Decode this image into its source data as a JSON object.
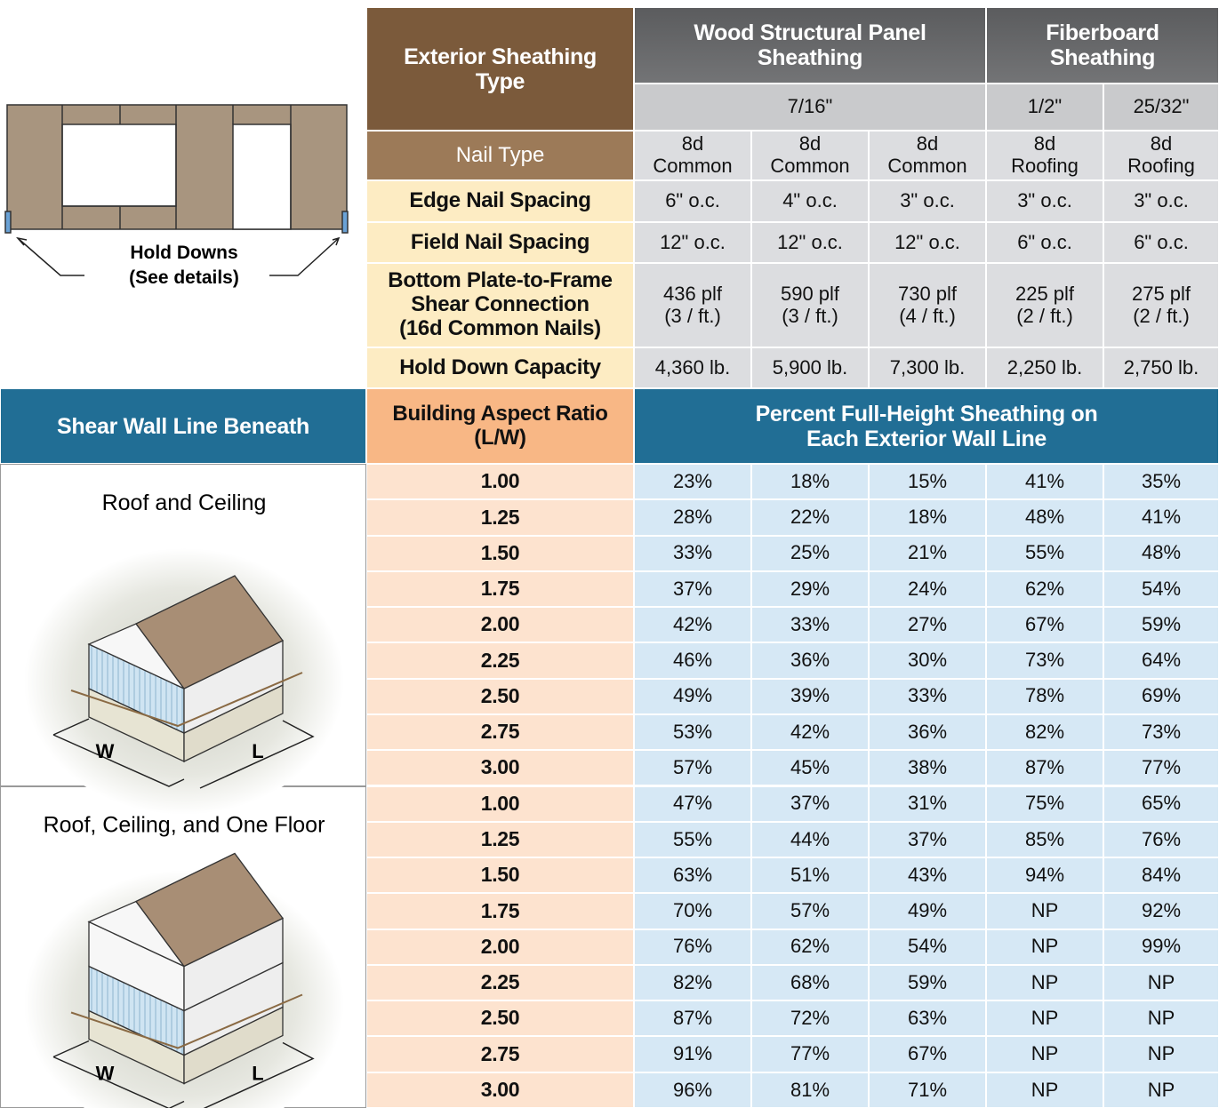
{
  "diagram": {
    "hold_downs": [
      "Hold Downs",
      "(See details)"
    ]
  },
  "header": {
    "type_label": [
      "Exterior Sheathing",
      "Type"
    ],
    "groups": [
      [
        "Wood Structural Panel",
        "Sheathing"
      ],
      [
        "Fiberboard",
        "Sheathing"
      ]
    ],
    "thicknesses": [
      "7/16\"",
      "1/2\"",
      "25/32\""
    ],
    "specs": [
      {
        "label": [
          "Nail Type"
        ],
        "cells": [
          [
            "8d",
            "Common"
          ],
          [
            "8d",
            "Common"
          ],
          [
            "8d",
            "Common"
          ],
          [
            "8d",
            "Roofing"
          ],
          [
            "8d",
            "Roofing"
          ]
        ]
      },
      {
        "label": [
          "Edge Nail Spacing"
        ],
        "cells": [
          [
            "6\" o.c."
          ],
          [
            "4\" o.c."
          ],
          [
            "3\" o.c."
          ],
          [
            "3\" o.c."
          ],
          [
            "3\" o.c."
          ]
        ]
      },
      {
        "label": [
          "Field Nail Spacing"
        ],
        "cells": [
          [
            "12\" o.c."
          ],
          [
            "12\" o.c."
          ],
          [
            "12\" o.c."
          ],
          [
            "6\" o.c."
          ],
          [
            "6\" o.c."
          ]
        ]
      },
      {
        "label": [
          "Bottom Plate-to-Frame",
          "Shear Connection",
          "(16d Common Nails)"
        ],
        "cells": [
          [
            "436 plf",
            "(3 / ft.)"
          ],
          [
            "590 plf",
            "(3 / ft.)"
          ],
          [
            "730 plf",
            "(4 / ft.)"
          ],
          [
            "225 plf",
            "(2 / ft.)"
          ],
          [
            "275 plf",
            "(2 / ft.)"
          ]
        ]
      },
      {
        "label": [
          "Hold Down Capacity"
        ],
        "cells": [
          [
            "4,360 lb."
          ],
          [
            "5,900 lb."
          ],
          [
            "7,300 lb."
          ],
          [
            "2,250 lb."
          ],
          [
            "2,750 lb."
          ]
        ]
      }
    ]
  },
  "aspect": {
    "left": "Shear Wall Line Beneath",
    "ratio_label": [
      "Building Aspect Ratio",
      "(L/W)"
    ],
    "percent_label": [
      "Percent Full-Height Sheathing on",
      "Each Exterior Wall Line"
    ]
  },
  "sections": [
    {
      "label": "Roof and Ceiling",
      "dims": [
        "W",
        "L"
      ],
      "rows": [
        {
          "ratio": "1.00",
          "values": [
            "23%",
            "18%",
            "15%",
            "41%",
            "35%"
          ]
        },
        {
          "ratio": "1.25",
          "values": [
            "28%",
            "22%",
            "18%",
            "48%",
            "41%"
          ]
        },
        {
          "ratio": "1.50",
          "values": [
            "33%",
            "25%",
            "21%",
            "55%",
            "48%"
          ]
        },
        {
          "ratio": "1.75",
          "values": [
            "37%",
            "29%",
            "24%",
            "62%",
            "54%"
          ]
        },
        {
          "ratio": "2.00",
          "values": [
            "42%",
            "33%",
            "27%",
            "67%",
            "59%"
          ]
        },
        {
          "ratio": "2.25",
          "values": [
            "46%",
            "36%",
            "30%",
            "73%",
            "64%"
          ]
        },
        {
          "ratio": "2.50",
          "values": [
            "49%",
            "39%",
            "33%",
            "78%",
            "69%"
          ]
        },
        {
          "ratio": "2.75",
          "values": [
            "53%",
            "42%",
            "36%",
            "82%",
            "73%"
          ]
        },
        {
          "ratio": "3.00",
          "values": [
            "57%",
            "45%",
            "38%",
            "87%",
            "77%"
          ]
        }
      ]
    },
    {
      "label": "Roof, Ceiling, and One Floor",
      "dims": [
        "W",
        "L"
      ],
      "rows": [
        {
          "ratio": "1.00",
          "values": [
            "47%",
            "37%",
            "31%",
            "75%",
            "65%"
          ]
        },
        {
          "ratio": "1.25",
          "values": [
            "55%",
            "44%",
            "37%",
            "85%",
            "76%"
          ]
        },
        {
          "ratio": "1.50",
          "values": [
            "63%",
            "51%",
            "43%",
            "94%",
            "84%"
          ]
        },
        {
          "ratio": "1.75",
          "values": [
            "70%",
            "57%",
            "49%",
            "NP",
            "92%"
          ]
        },
        {
          "ratio": "2.00",
          "values": [
            "76%",
            "62%",
            "54%",
            "NP",
            "99%"
          ]
        },
        {
          "ratio": "2.25",
          "values": [
            "82%",
            "68%",
            "59%",
            "NP",
            "NP"
          ]
        },
        {
          "ratio": "2.50",
          "values": [
            "87%",
            "72%",
            "63%",
            "NP",
            "NP"
          ]
        },
        {
          "ratio": "2.75",
          "values": [
            "91%",
            "77%",
            "67%",
            "NP",
            "NP"
          ]
        },
        {
          "ratio": "3.00",
          "values": [
            "96%",
            "81%",
            "71%",
            "NP",
            "NP"
          ]
        }
      ]
    }
  ]
}
